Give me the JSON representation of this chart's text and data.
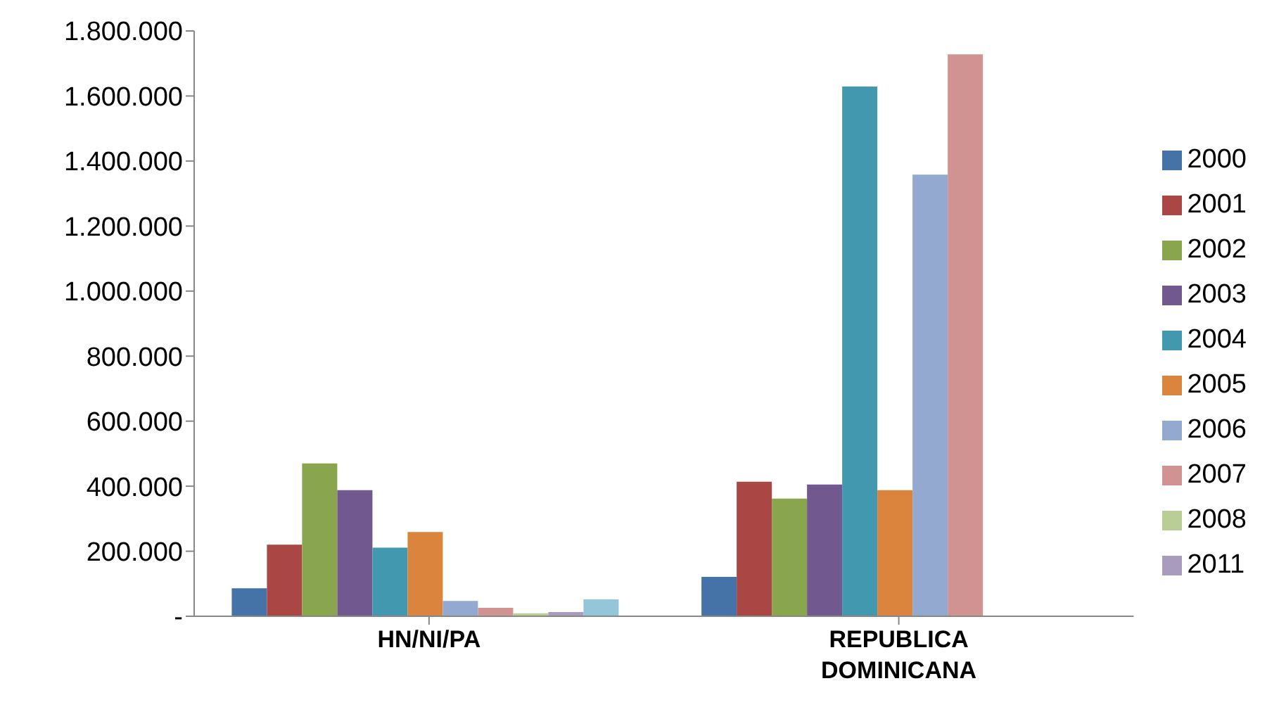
{
  "chart_data": {
    "type": "bar",
    "categories": [
      "HN/NI/PA",
      "REPUBLICA DOMINICANA"
    ],
    "series": [
      {
        "name": "2000",
        "color": "#4572a7",
        "values": [
          86000,
          121000
        ]
      },
      {
        "name": "2001",
        "color": "#aa4643",
        "values": [
          220000,
          414000
        ]
      },
      {
        "name": "2002",
        "color": "#89a54e",
        "values": [
          470000,
          362000
        ]
      },
      {
        "name": "2003",
        "color": "#71588f",
        "values": [
          388000,
          405000
        ]
      },
      {
        "name": "2004",
        "color": "#4198af",
        "values": [
          211000,
          1629000
        ]
      },
      {
        "name": "2005",
        "color": "#db843d",
        "values": [
          259000,
          388000
        ]
      },
      {
        "name": "2006",
        "color": "#93a9cf",
        "values": [
          47000,
          1358000
        ]
      },
      {
        "name": "2007",
        "color": "#d19392",
        "values": [
          26000,
          1728000
        ]
      },
      {
        "name": "2008",
        "color": "#b9cd96",
        "values": [
          9000,
          null
        ]
      },
      {
        "name": "2011",
        "color": "#a99bbd",
        "values": [
          13000,
          null
        ]
      },
      {
        "color": "#92c6d8",
        "values": [
          52000,
          null
        ]
      }
    ],
    "ylim": [
      0,
      1800000
    ],
    "yticks": [
      {
        "value": 0,
        "label": "-"
      },
      {
        "value": 200000,
        "label": "200.000"
      },
      {
        "value": 400000,
        "label": "400.000"
      },
      {
        "value": 600000,
        "label": "600.000"
      },
      {
        "value": 800000,
        "label": "800.000"
      },
      {
        "value": 1000000,
        "label": "1.000.000"
      },
      {
        "value": 1200000,
        "label": "1.200.000"
      },
      {
        "value": 1400000,
        "label": "1.400.000"
      },
      {
        "value": 1600000,
        "label": "1.600.000"
      },
      {
        "value": 1800000,
        "label": "1.800.000"
      }
    ],
    "legend": "right",
    "grid": false
  }
}
